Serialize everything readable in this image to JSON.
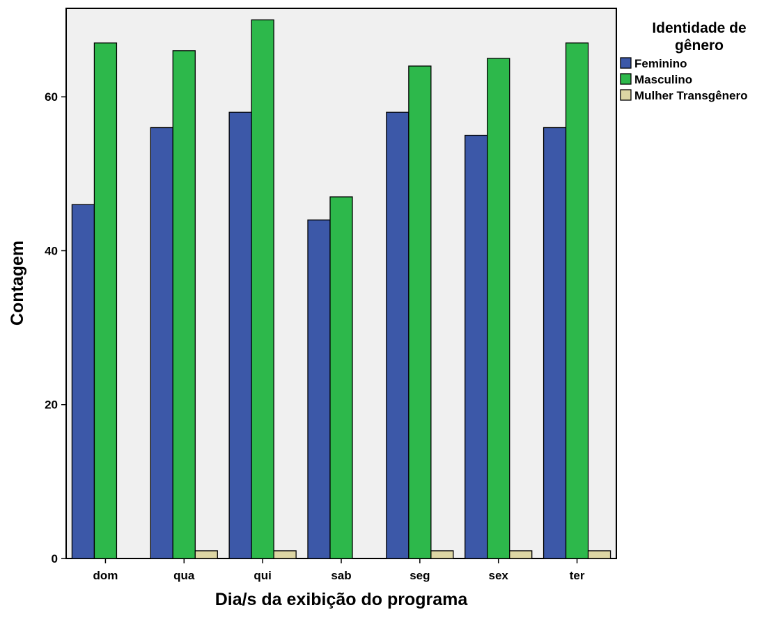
{
  "chart_data": {
    "type": "bar",
    "xlabel": "Dia/s da exibição do programa",
    "ylabel": "Contagem",
    "categories": [
      "dom",
      "qua",
      "qui",
      "sab",
      "seg",
      "sex",
      "ter"
    ],
    "series": [
      {
        "name": "Feminino",
        "color": "#3c58a8",
        "values": [
          46,
          56,
          58,
          44,
          58,
          55,
          56
        ]
      },
      {
        "name": "Masculino",
        "color": "#2db84b",
        "values": [
          67,
          66,
          70,
          47,
          64,
          65,
          67
        ]
      },
      {
        "name": "Mulher Transgênero",
        "color": "#ddd6a4",
        "values": [
          0,
          1,
          1,
          0,
          1,
          1,
          1
        ]
      }
    ],
    "ylim": [
      0,
      71.5
    ],
    "yticks": [
      0,
      20,
      40,
      60
    ],
    "ytick_labels": [
      "0",
      "20",
      "40",
      "60"
    ],
    "legend": {
      "title_lines": [
        "Identidade de",
        "gênero"
      ],
      "placement": "right"
    },
    "plot_background": "#f0f0f0",
    "grid": false
  }
}
